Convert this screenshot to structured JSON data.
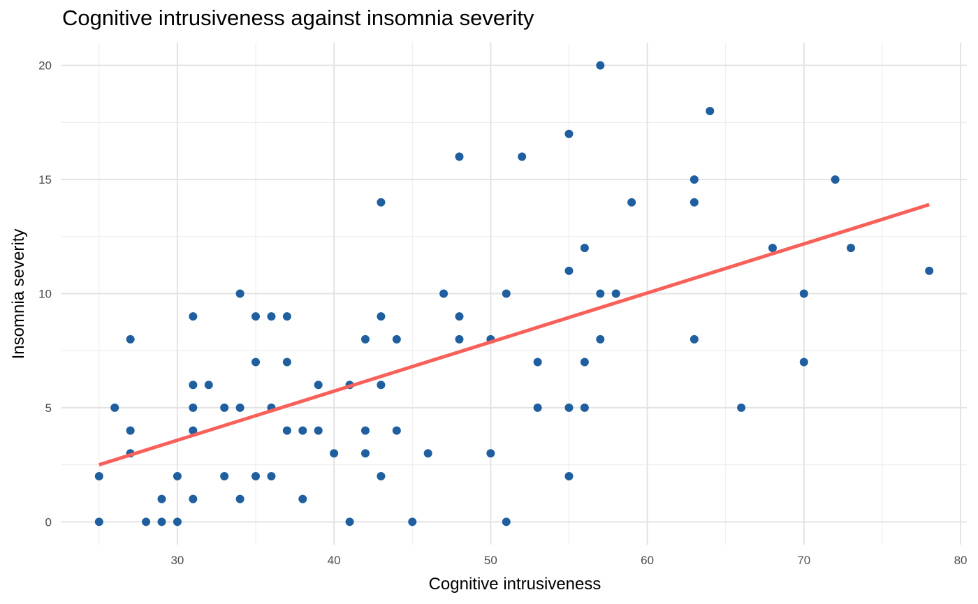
{
  "chart_data": {
    "type": "scatter",
    "title": "Cognitive intrusiveness against insomnia severity",
    "xlabel": "Cognitive intrusiveness",
    "ylabel": "Insomnia severity",
    "xlim": [
      22.6,
      80.4
    ],
    "ylim": [
      -1,
      21
    ],
    "x_ticks": [
      30,
      40,
      50,
      60,
      70,
      80
    ],
    "y_ticks": [
      0,
      5,
      10,
      15,
      20
    ],
    "grid": true,
    "point_color": "#1f5fa0",
    "line_color": "#f8605a",
    "points": [
      {
        "x": 25,
        "y": 0
      },
      {
        "x": 25,
        "y": 2
      },
      {
        "x": 26,
        "y": 5
      },
      {
        "x": 27,
        "y": 8
      },
      {
        "x": 27,
        "y": 4
      },
      {
        "x": 27,
        "y": 3
      },
      {
        "x": 28,
        "y": 0
      },
      {
        "x": 29,
        "y": 0
      },
      {
        "x": 29,
        "y": 1
      },
      {
        "x": 30,
        "y": 0
      },
      {
        "x": 30,
        "y": 2
      },
      {
        "x": 31,
        "y": 9
      },
      {
        "x": 31,
        "y": 6
      },
      {
        "x": 31,
        "y": 5
      },
      {
        "x": 31,
        "y": 4
      },
      {
        "x": 31,
        "y": 1
      },
      {
        "x": 32,
        "y": 6
      },
      {
        "x": 33,
        "y": 5
      },
      {
        "x": 33,
        "y": 2
      },
      {
        "x": 34,
        "y": 10
      },
      {
        "x": 34,
        "y": 5
      },
      {
        "x": 34,
        "y": 1
      },
      {
        "x": 35,
        "y": 9
      },
      {
        "x": 35,
        "y": 7
      },
      {
        "x": 35,
        "y": 2
      },
      {
        "x": 36,
        "y": 9
      },
      {
        "x": 36,
        "y": 5
      },
      {
        "x": 36,
        "y": 2
      },
      {
        "x": 37,
        "y": 9
      },
      {
        "x": 37,
        "y": 7
      },
      {
        "x": 37,
        "y": 4
      },
      {
        "x": 38,
        "y": 4
      },
      {
        "x": 38,
        "y": 1
      },
      {
        "x": 39,
        "y": 6
      },
      {
        "x": 39,
        "y": 4
      },
      {
        "x": 40,
        "y": 3
      },
      {
        "x": 41,
        "y": 6
      },
      {
        "x": 41,
        "y": 0
      },
      {
        "x": 42,
        "y": 8
      },
      {
        "x": 42,
        "y": 4
      },
      {
        "x": 42,
        "y": 3
      },
      {
        "x": 43,
        "y": 14
      },
      {
        "x": 43,
        "y": 9
      },
      {
        "x": 43,
        "y": 6
      },
      {
        "x": 43,
        "y": 2
      },
      {
        "x": 44,
        "y": 8
      },
      {
        "x": 44,
        "y": 4
      },
      {
        "x": 45,
        "y": 0
      },
      {
        "x": 46,
        "y": 3
      },
      {
        "x": 47,
        "y": 10
      },
      {
        "x": 48,
        "y": 16
      },
      {
        "x": 48,
        "y": 9
      },
      {
        "x": 48,
        "y": 8
      },
      {
        "x": 50,
        "y": 8
      },
      {
        "x": 50,
        "y": 3
      },
      {
        "x": 51,
        "y": 10
      },
      {
        "x": 51,
        "y": 0
      },
      {
        "x": 52,
        "y": 16
      },
      {
        "x": 53,
        "y": 7
      },
      {
        "x": 53,
        "y": 5
      },
      {
        "x": 55,
        "y": 17
      },
      {
        "x": 55,
        "y": 11
      },
      {
        "x": 55,
        "y": 5
      },
      {
        "x": 55,
        "y": 2
      },
      {
        "x": 56,
        "y": 12
      },
      {
        "x": 56,
        "y": 7
      },
      {
        "x": 56,
        "y": 5
      },
      {
        "x": 57,
        "y": 20
      },
      {
        "x": 57,
        "y": 10
      },
      {
        "x": 57,
        "y": 8
      },
      {
        "x": 58,
        "y": 10
      },
      {
        "x": 59,
        "y": 14
      },
      {
        "x": 63,
        "y": 15
      },
      {
        "x": 63,
        "y": 14
      },
      {
        "x": 63,
        "y": 8
      },
      {
        "x": 64,
        "y": 18
      },
      {
        "x": 66,
        "y": 5
      },
      {
        "x": 68,
        "y": 12
      },
      {
        "x": 70,
        "y": 10
      },
      {
        "x": 70,
        "y": 7
      },
      {
        "x": 72,
        "y": 15
      },
      {
        "x": 73,
        "y": 12
      },
      {
        "x": 78,
        "y": 11
      }
    ],
    "trend_line": {
      "x": [
        25,
        78
      ],
      "y": [
        2.5,
        13.9
      ]
    }
  }
}
